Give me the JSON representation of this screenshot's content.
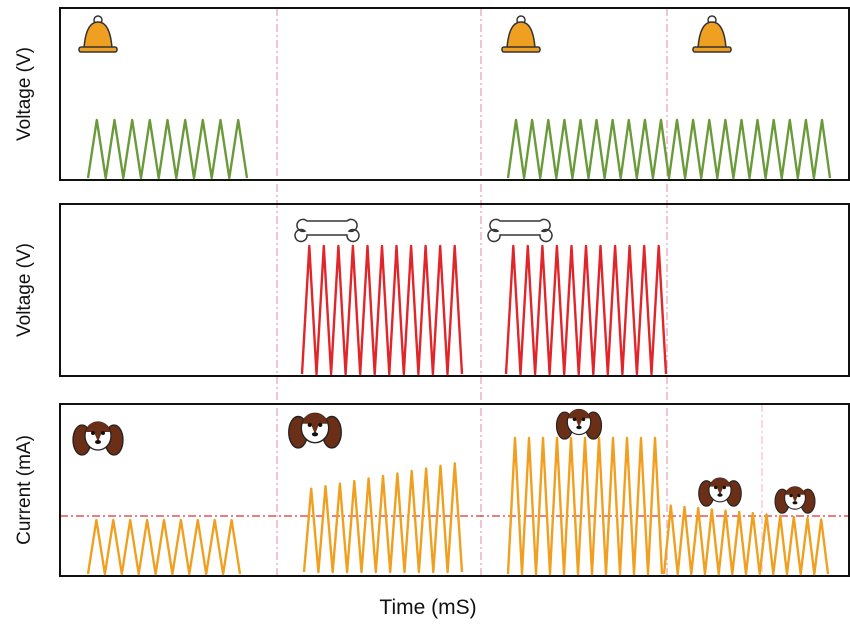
{
  "panels": [
    {
      "ylabel": "Voltage (V)"
    },
    {
      "ylabel": "Voltage (V)"
    },
    {
      "ylabel": "Current (mA)"
    }
  ],
  "xlabel": "Time (mS)"
}
